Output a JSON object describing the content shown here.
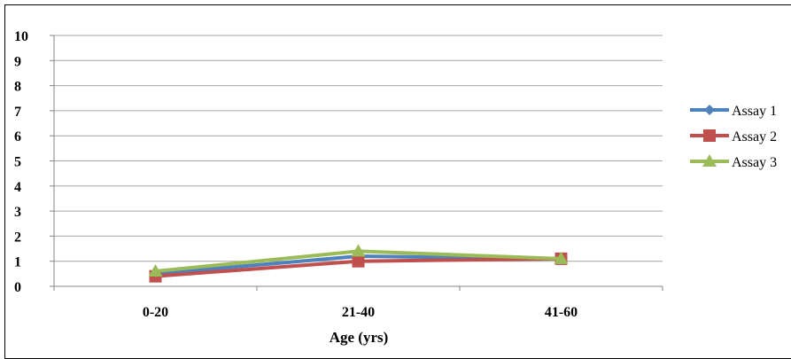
{
  "chart_data": {
    "type": "line",
    "categories": [
      "0-20",
      "21-40",
      "41-60"
    ],
    "xlabel": "Age (yrs)",
    "ylabel": "",
    "ylim": [
      0,
      10
    ],
    "yticks": [
      0,
      1,
      2,
      3,
      4,
      5,
      6,
      7,
      8,
      9,
      10
    ],
    "grid": "horizontal",
    "legend_position": "right",
    "series": [
      {
        "name": "Assay 1",
        "color": "#4f81bd",
        "marker": "diamond",
        "values": [
          0.5,
          1.2,
          1.1
        ]
      },
      {
        "name": "Assay 2",
        "color": "#c0504d",
        "marker": "square",
        "values": [
          0.4,
          1.0,
          1.1
        ]
      },
      {
        "name": "Assay 3",
        "color": "#9bbb59",
        "marker": "triangle",
        "values": [
          0.6,
          1.4,
          1.1
        ]
      }
    ]
  }
}
